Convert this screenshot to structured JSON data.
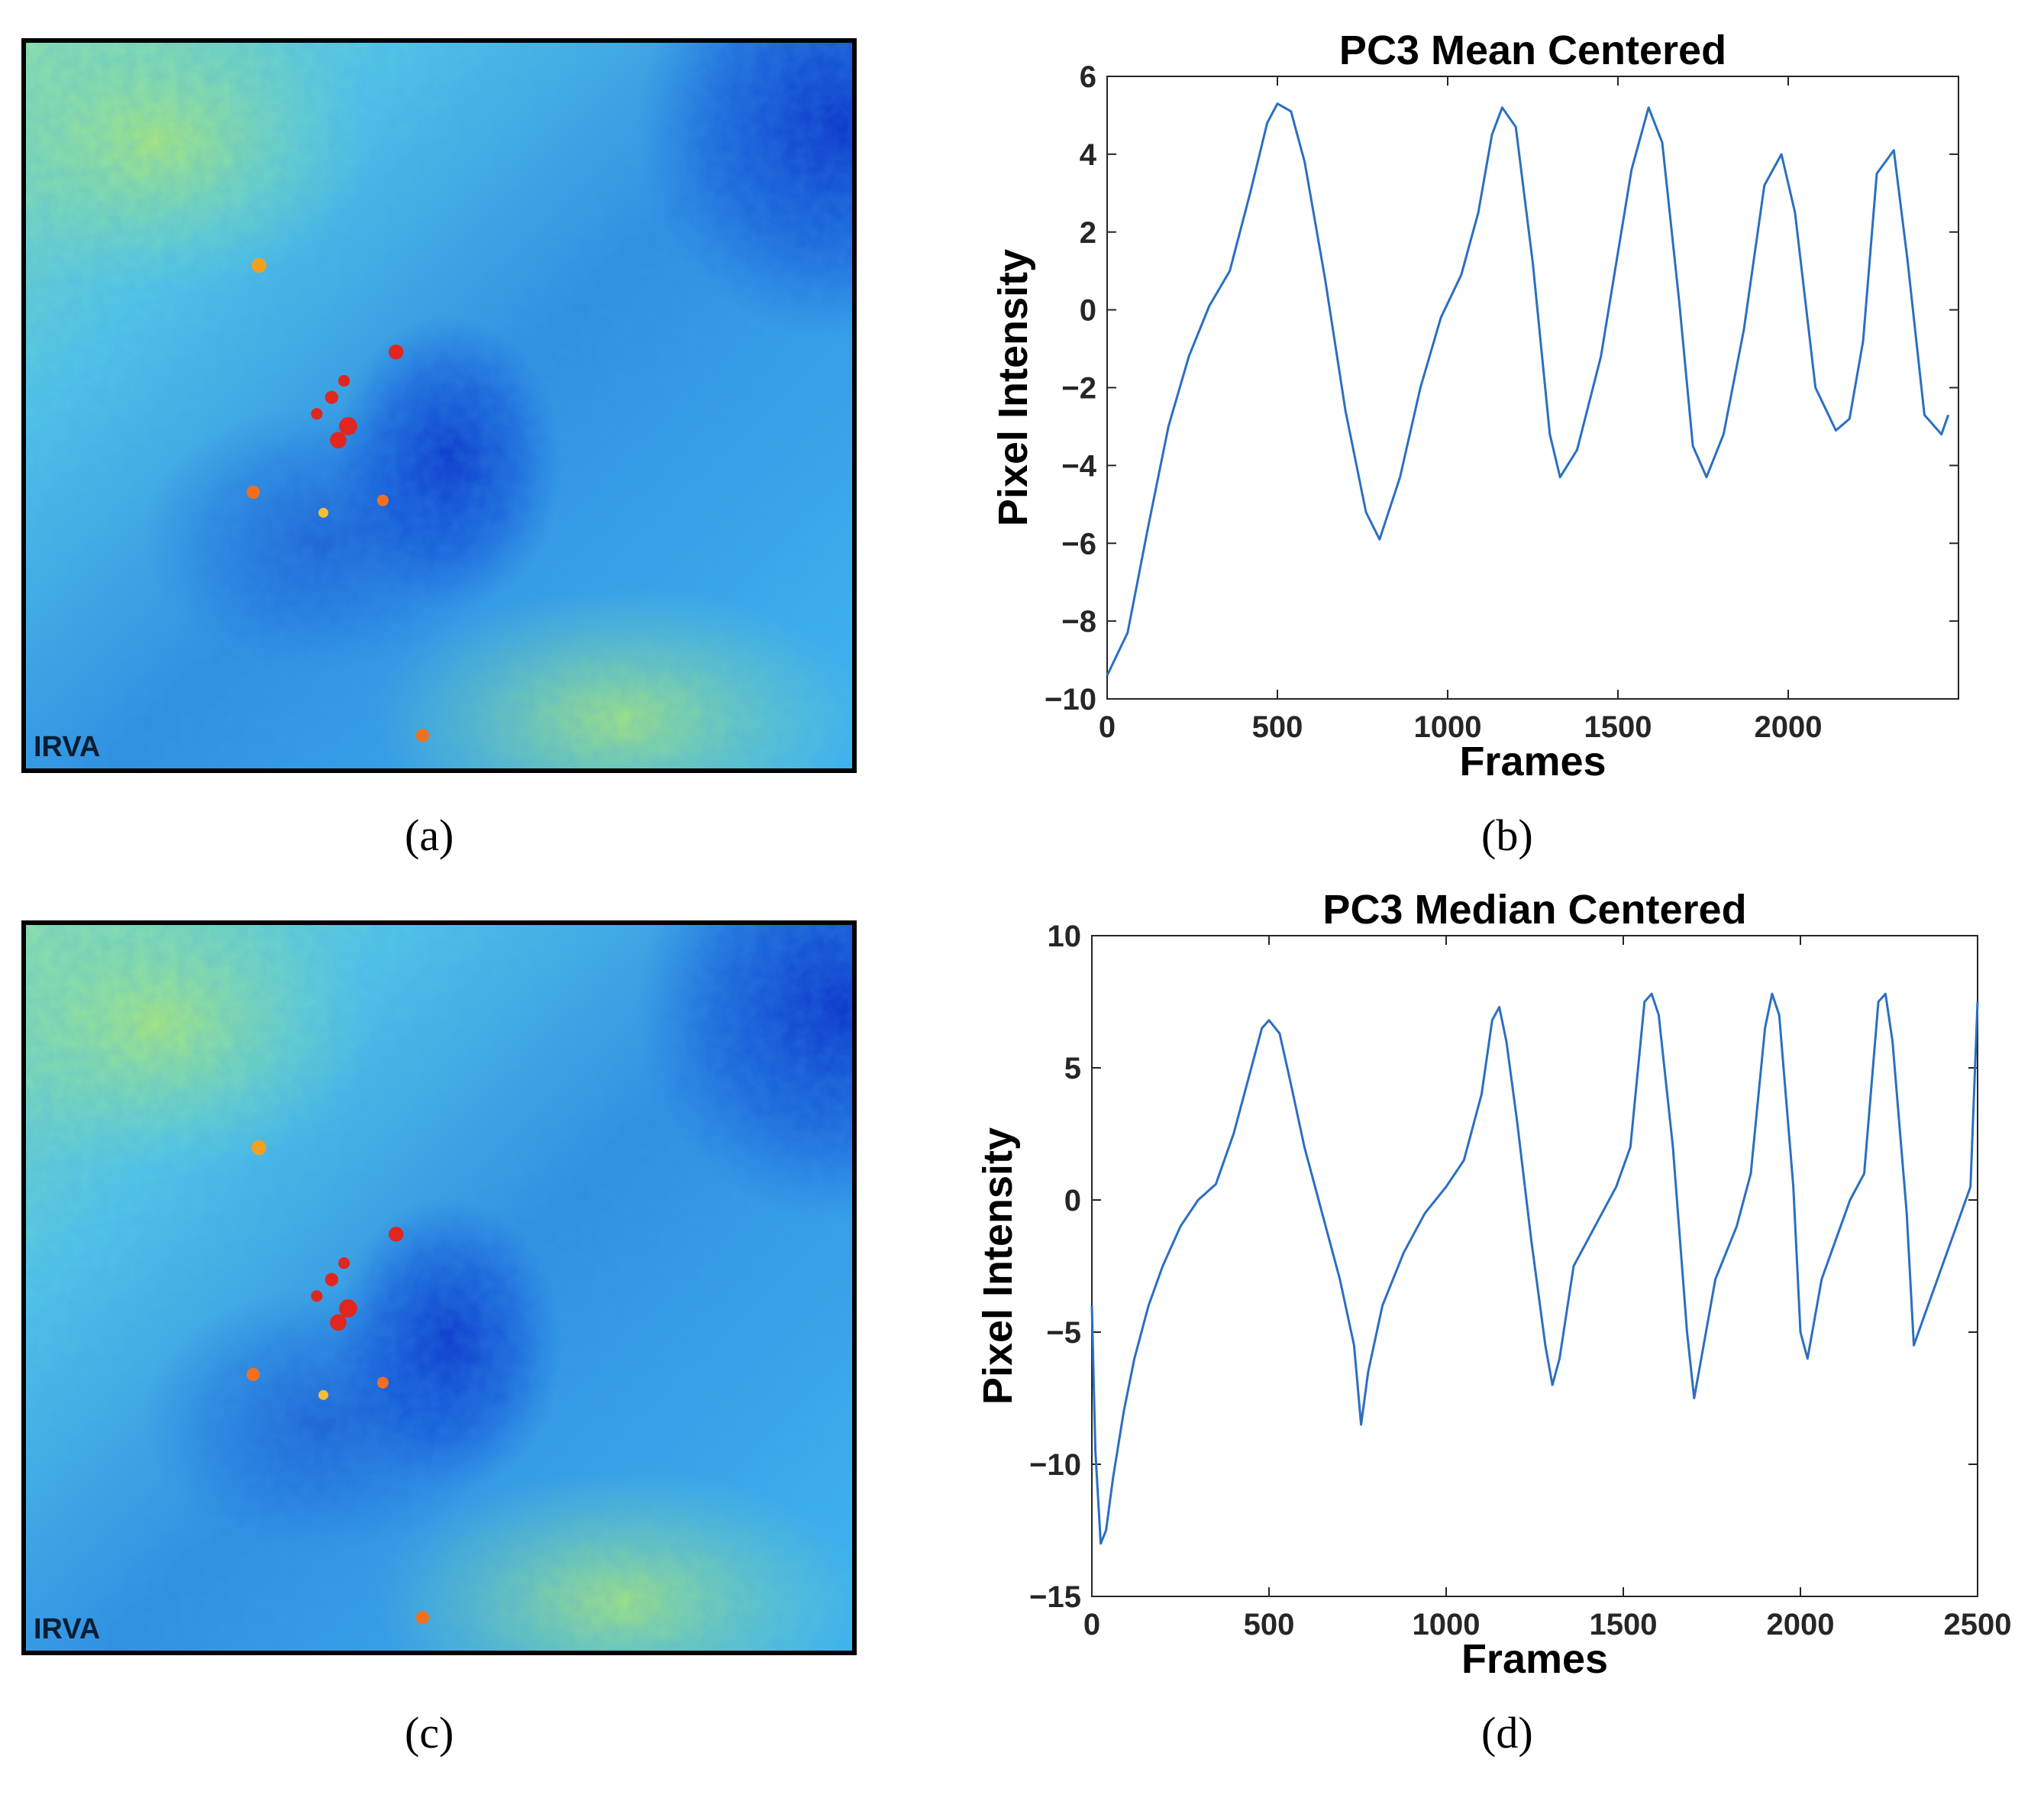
{
  "panels": {
    "a": {
      "label": "(a)",
      "image_label": "IRVA"
    },
    "b": {
      "label": "(b)"
    },
    "c": {
      "label": "(c)",
      "image_label": "IRVA"
    },
    "d": {
      "label": "(d)"
    }
  },
  "colors": {
    "line": "#2b6fc0",
    "axis": "#262626",
    "hot_spot": "#e0261e",
    "cold": "#0a2fc8",
    "background_mid": "#3fb6f0"
  },
  "chart_data": [
    {
      "panel": "b",
      "type": "line",
      "title": "PC3 Mean Centered",
      "xlabel": "Frames",
      "ylabel": "Pixel Intensity",
      "xlim": [
        0,
        2500
      ],
      "ylim": [
        -10,
        6
      ],
      "xticks": [
        0,
        500,
        1000,
        1500,
        2000
      ],
      "yticks": [
        6,
        4,
        2,
        0,
        -2,
        -4,
        -6,
        -8,
        -10
      ],
      "grid": false,
      "series": [
        {
          "x": [
            0,
            60,
            120,
            180,
            240,
            300,
            360,
            420,
            470,
            500,
            540,
            580,
            640,
            700,
            760,
            800,
            860,
            920,
            980,
            1040,
            1090,
            1130,
            1160,
            1200,
            1250,
            1300,
            1330,
            1380,
            1450,
            1540,
            1590,
            1630,
            1680,
            1720,
            1760,
            1810,
            1870,
            1930,
            1980,
            2020,
            2080,
            2140,
            2180,
            2220,
            2260,
            2310,
            2350,
            2400,
            2450,
            2470
          ],
          "y": [
            -9.4,
            -8.3,
            -5.6,
            -3.0,
            -1.2,
            0.1,
            1.0,
            3.0,
            4.8,
            5.3,
            5.1,
            3.8,
            0.8,
            -2.6,
            -5.2,
            -5.9,
            -4.3,
            -2.0,
            -0.2,
            0.9,
            2.5,
            4.5,
            5.2,
            4.7,
            1.2,
            -3.2,
            -4.3,
            -3.6,
            -1.2,
            3.6,
            5.2,
            4.3,
            0.2,
            -3.5,
            -4.3,
            -3.2,
            -0.5,
            3.2,
            4.0,
            2.5,
            -2.0,
            -3.1,
            -2.8,
            -0.8,
            3.5,
            4.1,
            1.3,
            -2.7,
            -3.2,
            -2.7
          ]
        }
      ]
    },
    {
      "panel": "d",
      "type": "line",
      "title": "PC3 Median Centered",
      "xlabel": "Frames",
      "ylabel": "Pixel Intensity",
      "xlim": [
        0,
        2500
      ],
      "ylim": [
        -15,
        10
      ],
      "xticks": [
        0,
        500,
        1000,
        1500,
        2000,
        2500
      ],
      "yticks": [
        10,
        5,
        0,
        -5,
        -10,
        -15
      ],
      "grid": false,
      "series": [
        {
          "x": [
            0,
            10,
            25,
            40,
            60,
            90,
            120,
            160,
            200,
            250,
            300,
            350,
            400,
            440,
            480,
            500,
            530,
            560,
            600,
            650,
            700,
            740,
            760,
            780,
            820,
            880,
            940,
            1000,
            1050,
            1100,
            1130,
            1150,
            1170,
            1200,
            1240,
            1280,
            1300,
            1320,
            1360,
            1420,
            1480,
            1520,
            1560,
            1580,
            1600,
            1640,
            1680,
            1700,
            1720,
            1760,
            1820,
            1860,
            1900,
            1920,
            1940,
            1980,
            2000,
            2020,
            2060,
            2100,
            2140,
            2180,
            2220,
            2240,
            2260,
            2300,
            2320,
            2360,
            2400,
            2440,
            2480,
            2500
          ],
          "y": [
            -4.0,
            -9.5,
            -13.0,
            -12.5,
            -10.5,
            -8.0,
            -6.0,
            -4.0,
            -2.5,
            -1.0,
            0.0,
            0.6,
            2.5,
            4.5,
            6.5,
            6.8,
            6.3,
            4.5,
            2.0,
            -0.5,
            -3.0,
            -5.5,
            -8.5,
            -6.5,
            -4.0,
            -2.0,
            -0.5,
            0.5,
            1.5,
            4.0,
            6.8,
            7.3,
            6.0,
            3.0,
            -1.5,
            -5.5,
            -7.0,
            -6.0,
            -2.5,
            -1.0,
            0.5,
            2.0,
            7.5,
            7.8,
            7.0,
            2.0,
            -5.0,
            -7.5,
            -6.0,
            -3.0,
            -1.0,
            1.0,
            6.5,
            7.8,
            7.0,
            0.5,
            -5.0,
            -6.0,
            -3.0,
            -1.5,
            0.0,
            1.0,
            7.5,
            7.8,
            6.0,
            -0.5,
            -5.5,
            -4.0,
            -2.5,
            -1.0,
            0.5,
            7.5
          ]
        }
      ]
    }
  ]
}
